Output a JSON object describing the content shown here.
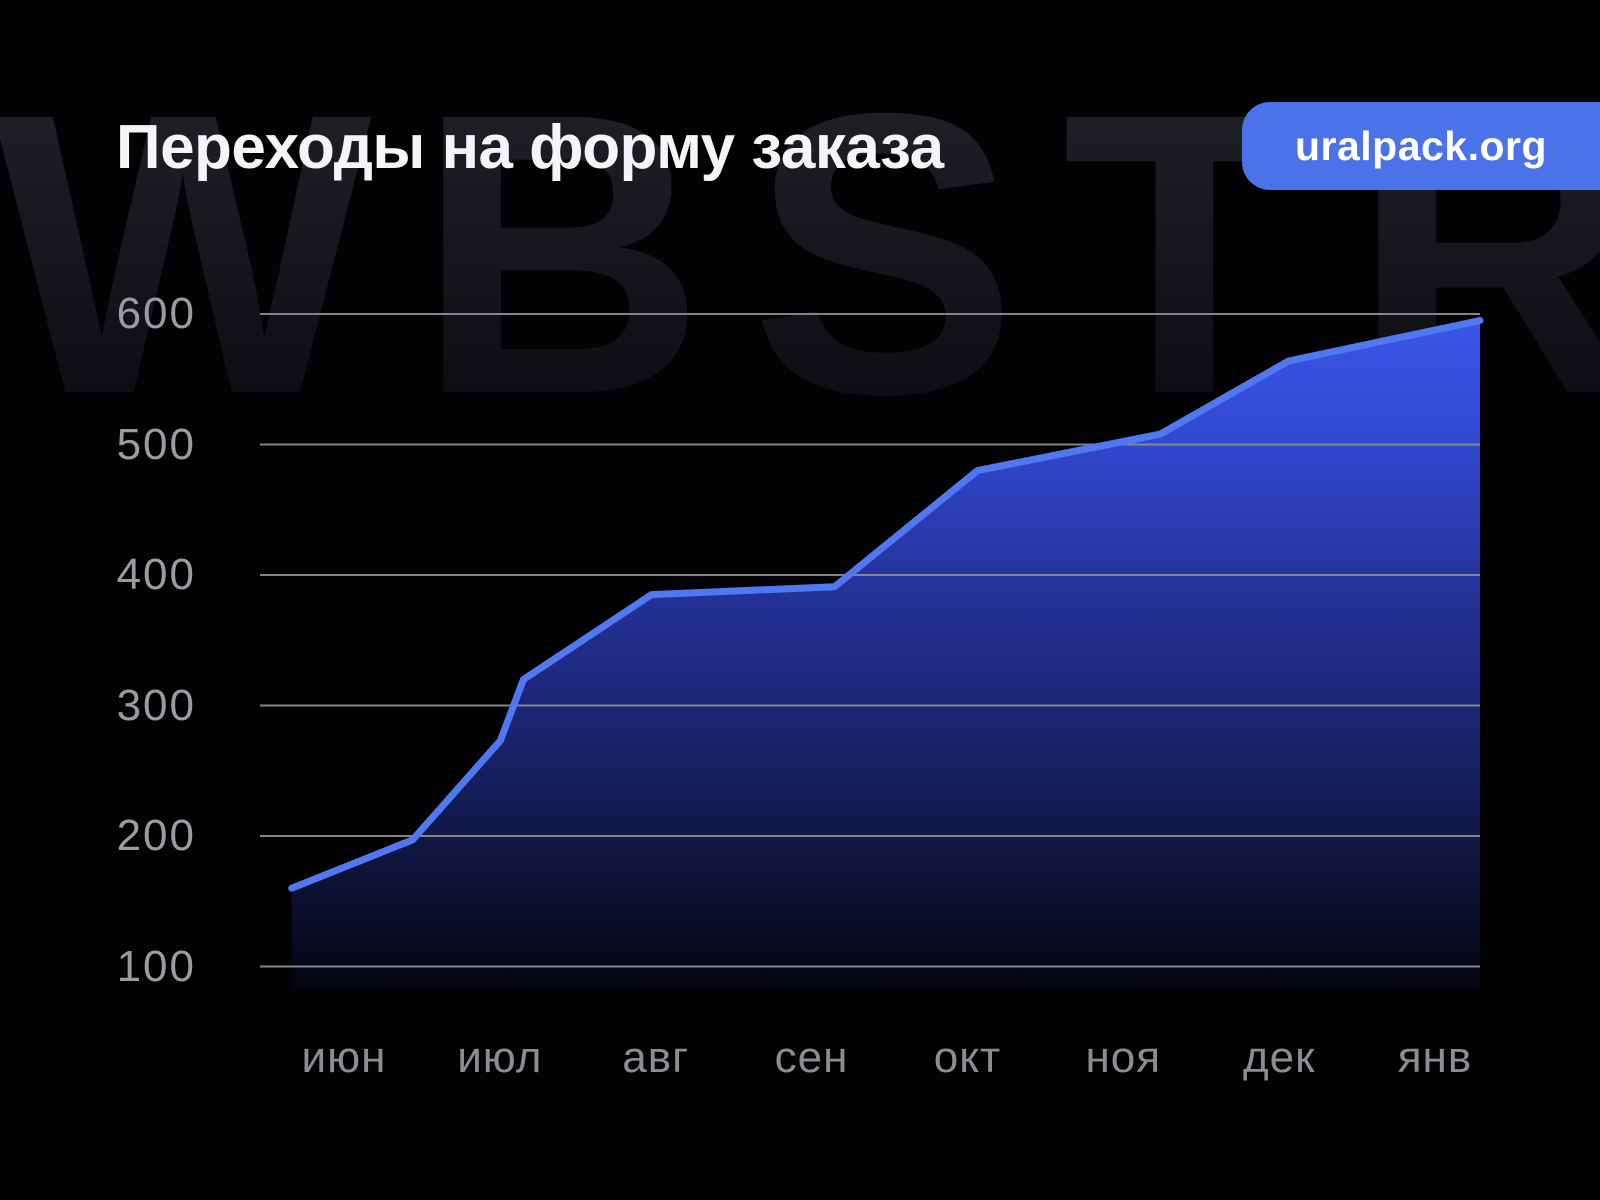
{
  "page": {
    "background_color": "#030305",
    "watermark_text": "WBSTR"
  },
  "header": {
    "title": "Переходы на форму заказа",
    "badge": {
      "label": "uralpack.org",
      "color": "#4a73e9",
      "text_color": "#ffffff"
    }
  },
  "chart_data": {
    "type": "area",
    "title": "Переходы на форму заказа",
    "categories": [
      "июн",
      "июл",
      "авг",
      "сен",
      "окт",
      "ноя",
      "дек",
      "янв"
    ],
    "y_ticks": [
      600,
      500,
      400,
      300,
      200,
      100
    ],
    "ylim": [
      100,
      600
    ],
    "xlabel": "",
    "ylabel": "",
    "grid": "horizontal",
    "legend": "none",
    "line_color": "#5078f2",
    "grid_color": "#8a8b8f",
    "y_label_color": "#9c9ca0",
    "x_label_color": "#8d8d91",
    "fill_stops": [
      "#3c56e9",
      "#3148cf",
      "#26359f",
      "#1c2677",
      "#111847",
      "#070a1d",
      "#04050d"
    ],
    "points": [
      {
        "x_frac": 0.026,
        "value": 160
      },
      {
        "x_frac": 0.125,
        "value": 197
      },
      {
        "x_frac": 0.197,
        "value": 273
      },
      {
        "x_frac": 0.216,
        "value": 320
      },
      {
        "x_frac": 0.321,
        "value": 385
      },
      {
        "x_frac": 0.471,
        "value": 391
      },
      {
        "x_frac": 0.588,
        "value": 480
      },
      {
        "x_frac": 0.738,
        "value": 508
      },
      {
        "x_frac": 0.843,
        "value": 564
      },
      {
        "x_frac": 1.0,
        "value": 595
      }
    ]
  }
}
